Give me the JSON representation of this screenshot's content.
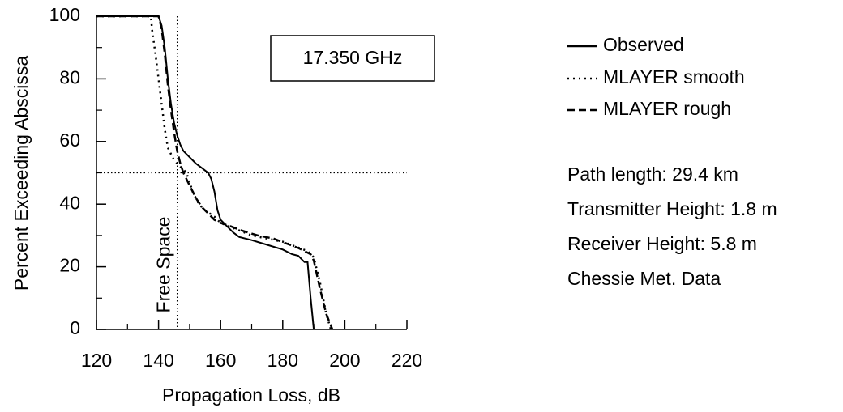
{
  "chart_data": {
    "type": "line",
    "xlabel": "Propagation Loss, dB",
    "ylabel": "Percent Exceeding Abscissa",
    "xlim": [
      120,
      220
    ],
    "ylim": [
      0,
      100
    ],
    "xticks": [
      120,
      140,
      160,
      180,
      200,
      220
    ],
    "yticks": [
      0,
      20,
      40,
      60,
      80,
      100
    ],
    "xminorticks": [
      130,
      150,
      170,
      190,
      210
    ],
    "yminorticks": [
      10,
      30,
      50,
      70,
      90
    ],
    "reference_lines": {
      "x": 146,
      "y": 50
    },
    "annotations": [
      "Free Space",
      "17.350 GHz"
    ],
    "info": [
      "Path length: 29.4 km",
      "Transmitter Height: 1.8 m",
      "Receiver Height: 5.8 m",
      "Chessie Met. Data"
    ],
    "series": [
      {
        "name": "Observed",
        "color": "#000000",
        "dash": "solid",
        "x": [
          120,
          140,
          141,
          142,
          143,
          144,
          145,
          146,
          147,
          148,
          150,
          152,
          154,
          156,
          157,
          158,
          159,
          160,
          162,
          164,
          166,
          170,
          175,
          180,
          183,
          185,
          187,
          188,
          189,
          190
        ],
        "values": [
          100,
          100,
          97,
          90,
          80,
          72,
          66,
          62,
          59,
          57,
          55,
          53,
          51.5,
          50,
          48,
          44,
          38,
          35,
          33,
          31,
          29.5,
          28.5,
          27,
          25.5,
          24,
          23.5,
          21.5,
          21.5,
          10,
          0
        ]
      },
      {
        "name": "MLAYER smooth",
        "color": "#000000",
        "dash": "dotted",
        "x": [
          120,
          137.5,
          138,
          139,
          140,
          141,
          142,
          143,
          145,
          147,
          149,
          150,
          151,
          152,
          153,
          155,
          158,
          160,
          165,
          170,
          180,
          188,
          190,
          192,
          194,
          195.5
        ],
        "values": [
          100,
          100,
          95,
          88,
          80,
          72,
          64,
          58,
          54,
          52,
          50,
          47,
          44,
          42,
          40,
          38,
          36,
          34,
          32,
          30,
          28,
          25,
          23,
          15,
          5,
          0
        ]
      },
      {
        "name": "MLAYER rough",
        "color": "#000000",
        "dash": "dashed",
        "x": [
          120,
          140,
          141,
          142,
          143,
          144,
          145,
          146,
          147,
          148,
          150,
          152,
          154,
          156,
          158,
          160,
          163,
          167,
          172,
          177,
          181,
          185,
          189,
          190,
          192,
          194,
          196
        ],
        "values": [
          100,
          100,
          96,
          88,
          78,
          70,
          63,
          57,
          53,
          50,
          46,
          42,
          39,
          37,
          35,
          34,
          33,
          31.5,
          30,
          29,
          27.5,
          26,
          24,
          22,
          13,
          5,
          0
        ]
      }
    ]
  }
}
